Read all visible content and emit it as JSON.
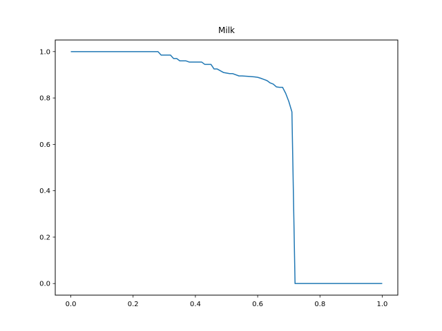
{
  "chart_data": {
    "type": "line",
    "title": "Milk",
    "xlabel": "",
    "ylabel": "",
    "xlim": [
      -0.05,
      1.05
    ],
    "ylim": [
      -0.05,
      1.05
    ],
    "xticks": [
      "0.0",
      "0.2",
      "0.4",
      "0.6",
      "0.8",
      "1.0"
    ],
    "yticks": [
      "0.0",
      "0.2",
      "0.4",
      "0.6",
      "0.8",
      "1.0"
    ],
    "xtick_values": [
      0.0,
      0.2,
      0.4,
      0.6,
      0.8,
      1.0
    ],
    "ytick_values": [
      0.0,
      0.2,
      0.4,
      0.6,
      0.8,
      1.0
    ],
    "grid": false,
    "line_color": "#1f77b4",
    "series": [
      {
        "x": [
          0.0,
          0.28,
          0.29,
          0.32,
          0.33,
          0.34,
          0.35,
          0.37,
          0.38,
          0.42,
          0.43,
          0.45,
          0.46,
          0.47,
          0.49,
          0.51,
          0.52,
          0.54,
          0.55,
          0.57,
          0.59,
          0.6,
          0.61,
          0.62,
          0.63,
          0.64,
          0.65,
          0.66,
          0.67,
          0.68,
          0.69,
          0.7,
          0.71,
          0.72,
          0.73,
          1.0
        ],
        "y": [
          1.0,
          1.0,
          0.985,
          0.985,
          0.97,
          0.97,
          0.96,
          0.96,
          0.955,
          0.955,
          0.945,
          0.945,
          0.925,
          0.925,
          0.91,
          0.905,
          0.905,
          0.895,
          0.895,
          0.893,
          0.891,
          0.889,
          0.885,
          0.88,
          0.875,
          0.865,
          0.86,
          0.848,
          0.846,
          0.846,
          0.82,
          0.785,
          0.74,
          0.0,
          0.0,
          0.0
        ]
      }
    ]
  }
}
